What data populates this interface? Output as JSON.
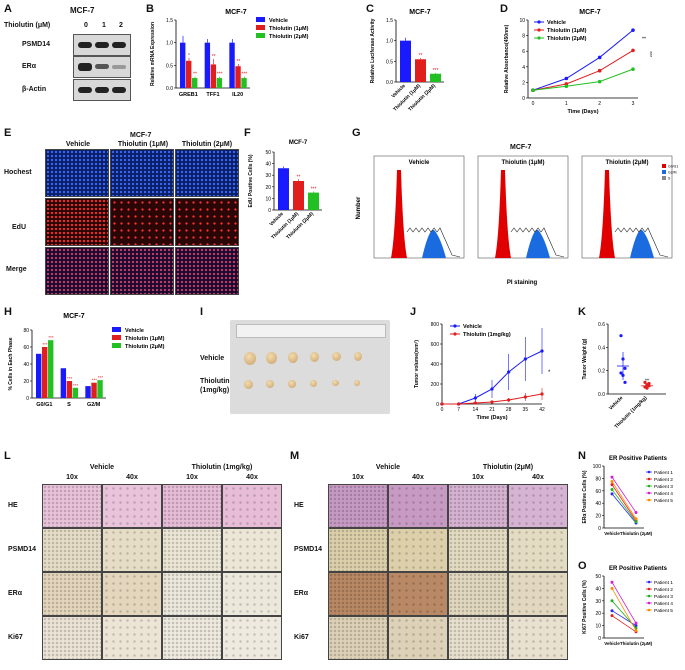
{
  "labels": {
    "A": "A",
    "B": "B",
    "C": "C",
    "D": "D",
    "E": "E",
    "F": "F",
    "G": "G",
    "H": "H",
    "I": "I",
    "J": "J",
    "K": "K",
    "L": "L",
    "M": "M",
    "N": "N",
    "O": "O"
  },
  "common": {
    "cell_line": "MCF-7"
  },
  "legend3": [
    "Vehicle",
    "Thiolutin (1μM)",
    "Thiolutin (2μM)"
  ],
  "colors": {
    "vehicle": "#1a1aff",
    "t1": "#e01e1e",
    "t2": "#22c022"
  },
  "panelA": {
    "header": "Thiolutin (μM)",
    "doses": [
      "0",
      "1",
      "2"
    ],
    "proteins": [
      "PSMD14",
      "ERα",
      "β-Actin"
    ]
  },
  "panelE": {
    "cols": [
      "Vehicle",
      "Thiolutin (1μM)",
      "Thiolutin (2μM)"
    ],
    "rows": [
      "Hochest",
      "EdU",
      "Merge"
    ]
  },
  "panelG": {
    "cols": [
      "Vehicle",
      "Thiolutin (1μM)",
      "Thiolutin (2μM)"
    ],
    "ylabel": "Number",
    "xlabel": "PI staining",
    "legend": [
      "G0/G1",
      "G2/M",
      "S"
    ]
  },
  "panelI": {
    "rows": [
      "Vehicle",
      "Thiolutin\n(1mg/kg)"
    ],
    "row1": "Vehicle",
    "row2a": "Thiolutin",
    "row2b": "(1mg/kg)"
  },
  "panelL": {
    "groups": [
      "Vehicle",
      "Thiolutin (1mg/kg)"
    ],
    "mags": [
      "10x",
      "40x",
      "10x",
      "40x"
    ],
    "rows": [
      "HE",
      "PSMD14",
      "ERα",
      "Ki67"
    ]
  },
  "panelM": {
    "groups": [
      "Vehicle",
      "Thiolutin (2μM)"
    ],
    "mags": [
      "10x",
      "40x",
      "10x",
      "40x"
    ],
    "rows": [
      "HE",
      "PSMD14",
      "ERα",
      "Ki67"
    ]
  },
  "chart_data": [
    {
      "id": "B",
      "type": "bar",
      "title": "MCF-7",
      "ylabel": "Relative mRNA Expression",
      "categories": [
        "GREB1",
        "TFF1",
        "IL20"
      ],
      "ylim": [
        0,
        1.5
      ],
      "yticks": [
        0,
        0.5,
        1.0,
        1.5
      ],
      "series": [
        {
          "name": "Vehicle",
          "values": [
            1.0,
            1.0,
            1.0
          ],
          "errors": [
            0.15,
            0.08,
            0.08
          ]
        },
        {
          "name": "Thiolutin (1μM)",
          "values": [
            0.6,
            0.52,
            0.48
          ],
          "errors": [
            0.06,
            0.12,
            0.05
          ]
        },
        {
          "name": "Thiolutin (2μM)",
          "values": [
            0.22,
            0.22,
            0.22
          ],
          "errors": [
            0.03,
            0.03,
            0.03
          ]
        }
      ],
      "annotations": [
        "*",
        "**",
        "**",
        "***",
        "**",
        "***"
      ]
    },
    {
      "id": "C",
      "type": "bar",
      "title": "MCF-7",
      "ylabel": "Relative Luciferase Activity",
      "categories": [
        "Vehicle",
        "Thiolutin (1μM)",
        "Thiolutin (2μM)"
      ],
      "values": [
        1.0,
        0.55,
        0.2
      ],
      "errors": [
        0.07,
        0.03,
        0.02
      ],
      "ylim": [
        0,
        1.5
      ],
      "yticks": [
        0,
        0.5,
        1.0,
        1.5
      ],
      "annotations": [
        "",
        "**",
        "***"
      ]
    },
    {
      "id": "D",
      "type": "line",
      "title": "MCF-7",
      "ylabel": "Relative Absorbance(450nm)",
      "xlabel": "Time (Days)",
      "x": [
        0,
        1,
        2,
        3
      ],
      "ylim": [
        0,
        10
      ],
      "yticks": [
        0,
        2,
        4,
        6,
        8,
        10
      ],
      "series": [
        {
          "name": "Vehicle",
          "values": [
            1.0,
            2.5,
            5.2,
            8.7
          ]
        },
        {
          "name": "Thiolutin (1μM)",
          "values": [
            1.0,
            1.8,
            3.5,
            6.1
          ]
        },
        {
          "name": "Thiolutin (2μM)",
          "values": [
            1.0,
            1.5,
            2.1,
            3.7
          ]
        }
      ],
      "annotations": [
        "**",
        "***"
      ]
    },
    {
      "id": "F",
      "type": "bar",
      "title": "MCF-7",
      "ylabel": "EdU Positive Cells (%)",
      "categories": [
        "Vehicle",
        "Thiolutin (1μM)",
        "Thiolutin (2μM)"
      ],
      "values": [
        36,
        25,
        15
      ],
      "errors": [
        1.5,
        1.5,
        1.0
      ],
      "ylim": [
        0,
        50
      ],
      "yticks": [
        0,
        10,
        20,
        30,
        40,
        50
      ],
      "annotations": [
        "",
        "**",
        "***"
      ]
    },
    {
      "id": "H",
      "type": "bar",
      "title": "MCF-7",
      "ylabel": "% Cells in Each Phase",
      "categories": [
        "G0/G1",
        "S",
        "G2/M"
      ],
      "ylim": [
        0,
        80
      ],
      "yticks": [
        0,
        20,
        40,
        60,
        80
      ],
      "series": [
        {
          "name": "Vehicle",
          "values": [
            52,
            35,
            14
          ]
        },
        {
          "name": "Thiolutin (1μM)",
          "values": [
            60,
            20,
            18
          ]
        },
        {
          "name": "Thiolutin (2μM)",
          "values": [
            68,
            12,
            21
          ]
        }
      ],
      "annotations": [
        "***",
        "***",
        "***",
        "***",
        "***",
        "***"
      ]
    },
    {
      "id": "J",
      "type": "line",
      "ylabel": "Tumor volume(mm³)",
      "xlabel": "Time (Days)",
      "x": [
        0,
        7,
        14,
        21,
        28,
        35,
        42
      ],
      "ylim": [
        0,
        800
      ],
      "yticks": [
        0,
        200,
        400,
        600,
        800
      ],
      "series": [
        {
          "name": "Vehicle",
          "values": [
            0,
            0,
            60,
            150,
            320,
            450,
            530
          ],
          "errors": [
            0,
            0,
            40,
            90,
            180,
            220,
            230
          ]
        },
        {
          "name": "Thiolutin (1mg/kg)",
          "values": [
            0,
            0,
            10,
            20,
            40,
            70,
            100
          ],
          "errors": [
            0,
            0,
            10,
            15,
            20,
            40,
            60
          ]
        }
      ],
      "annotations": [
        "*"
      ]
    },
    {
      "id": "K",
      "type": "scatter",
      "ylabel": "Tumor Weight (g)",
      "categories": [
        "Vehicle",
        "Thiolutin (1mg/kg)"
      ],
      "means": [
        0.24,
        0.07
      ],
      "errors": [
        0.12,
        0.02
      ],
      "ylim": [
        0,
        0.6
      ],
      "yticks": [
        0,
        0.2,
        0.4,
        0.6
      ],
      "points": [
        [
          0.5,
          0.3,
          0.22,
          0.18,
          0.16,
          0.1
        ],
        [
          0.1,
          0.08,
          0.07,
          0.06,
          0.05,
          0.09
        ]
      ],
      "annotations": [
        "",
        "**"
      ]
    },
    {
      "id": "N",
      "type": "line",
      "title": "ER Positive Patients",
      "ylabel": "ERα Positive Cells (%)",
      "categories": [
        "Vehicle",
        "Thiolutin (2μM)"
      ],
      "ylim": [
        0,
        100
      ],
      "yticks": [
        0,
        20,
        40,
        60,
        80,
        100
      ],
      "series": [
        {
          "name": "Patient 1",
          "values": [
            55,
            8
          ]
        },
        {
          "name": "Patient 2",
          "values": [
            70,
            12
          ]
        },
        {
          "name": "Patient 3",
          "values": [
            62,
            10
          ]
        },
        {
          "name": "Patient 4",
          "values": [
            82,
            25
          ]
        },
        {
          "name": "Patient 5",
          "values": [
            75,
            15
          ]
        }
      ]
    },
    {
      "id": "O",
      "type": "line",
      "title": "ER Positive Patients",
      "ylabel": "Ki67 Positive Cells (%)",
      "categories": [
        "Vehicle",
        "Thiolutin (2μM)"
      ],
      "ylim": [
        0,
        50
      ],
      "yticks": [
        0,
        10,
        20,
        30,
        40,
        50
      ],
      "series": [
        {
          "name": "Patient 1",
          "values": [
            22,
            10
          ]
        },
        {
          "name": "Patient 2",
          "values": [
            18,
            5
          ]
        },
        {
          "name": "Patient 3",
          "values": [
            30,
            8
          ]
        },
        {
          "name": "Patient 4",
          "values": [
            45,
            12
          ]
        },
        {
          "name": "Patient 5",
          "values": [
            40,
            6
          ]
        }
      ]
    }
  ]
}
